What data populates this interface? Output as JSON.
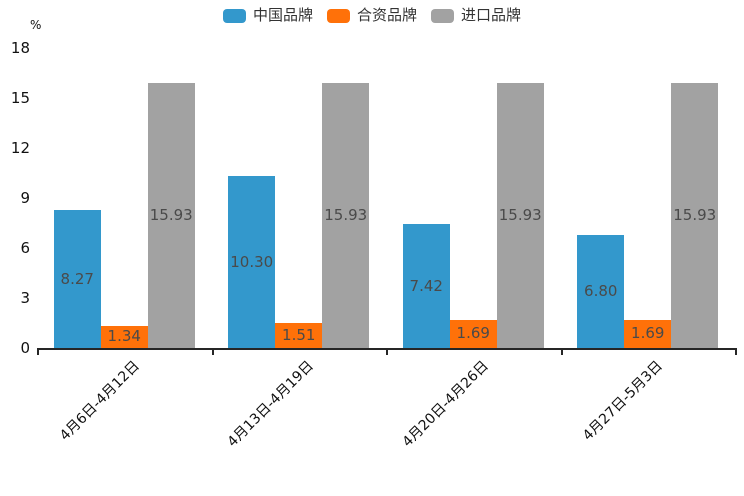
{
  "chart_data": {
    "type": "bar",
    "title": "",
    "xlabel": "",
    "ylabel": "%",
    "ylim": [
      0,
      18
    ],
    "yticks": [
      0,
      3,
      6,
      9,
      12,
      15,
      18
    ],
    "grid": false,
    "legend_position": "top-center",
    "value_labels": "inside-center, two decimals",
    "axis_color": "#262626",
    "tick_label_color": "#111111",
    "value_label_color": "#4a4a4a",
    "categories": [
      "4月6日-4月12日",
      "4月13日-4月19日",
      "4月20日-4月26日",
      "4月27日-5月3日"
    ],
    "series": [
      {
        "key": "china-brand",
        "name": "中国品牌",
        "color": "#3398cc",
        "values": [
          8.27,
          10.3,
          7.42,
          6.8
        ]
      },
      {
        "key": "joint-venture-brand",
        "name": "合资品牌",
        "color": "#ff7109",
        "values": [
          1.34,
          1.51,
          1.69,
          1.69
        ]
      },
      {
        "key": "imported-brand",
        "name": "进口品牌",
        "color": "#a2a2a2",
        "values": [
          15.93,
          15.93,
          15.93,
          15.93
        ]
      }
    ]
  }
}
